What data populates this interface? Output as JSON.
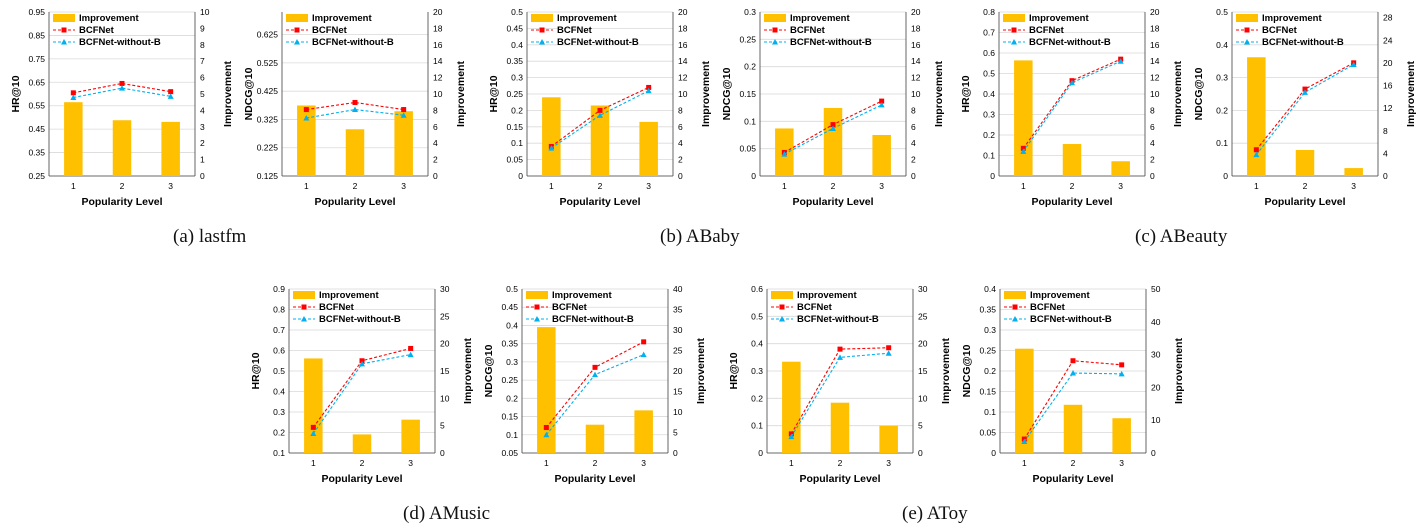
{
  "colors": {
    "bar": "#FFC000",
    "bcfnet": "#FF0000",
    "without_b": "#00B0F0",
    "axis": "#404040",
    "grid": "#D9D9D9",
    "text": "#000000"
  },
  "legend_labels": {
    "bar": "Improvement",
    "bcfnet": "BCFNet",
    "without_b": "BCFNet-without-B"
  },
  "xlabel": "Popularity Level",
  "y2label": "Improvement",
  "captions": [
    "(a)  lastfm",
    "(b)  ABaby",
    "(c)  ABeauty",
    "(d)  AMusic",
    "(e)  AToy"
  ],
  "chart_data": [
    {
      "type": "bar+line",
      "panel": "a",
      "ylabel": "HR@10",
      "categories": [
        "1",
        "2",
        "3"
      ],
      "yticks": [
        "0.25",
        "0.35",
        "0.45",
        "0.55",
        "0.65",
        "0.75",
        "0.85",
        "0.95"
      ],
      "ylim": [
        0.25,
        0.95
      ],
      "y2ticks": [
        "0",
        "1",
        "2",
        "3",
        "4",
        "5",
        "6",
        "7",
        "8",
        "9",
        "10"
      ],
      "y2lim": [
        0,
        10
      ],
      "series": [
        {
          "name": "Improvement",
          "kind": "bar",
          "axis": "right",
          "values": [
            4.5,
            3.4,
            3.3
          ]
        },
        {
          "name": "BCFNet",
          "kind": "line",
          "axis": "left",
          "values": [
            0.605,
            0.645,
            0.61
          ]
        },
        {
          "name": "BCFNet-without-B",
          "kind": "line",
          "axis": "left",
          "values": [
            0.585,
            0.625,
            0.59
          ]
        }
      ]
    },
    {
      "type": "bar+line",
      "panel": "a",
      "ylabel": "NDCG@10",
      "categories": [
        "1",
        "2",
        "3"
      ],
      "yticks": [
        "0.125",
        "0.225",
        "0.325",
        "0.425",
        "0.525",
        "0.625"
      ],
      "ylim": [
        0.125,
        0.705
      ],
      "y2ticks": [
        "0",
        "2",
        "4",
        "6",
        "8",
        "10",
        "12",
        "14",
        "16",
        "18",
        "20"
      ],
      "y2lim": [
        0,
        20
      ],
      "series": [
        {
          "name": "Improvement",
          "kind": "bar",
          "axis": "right",
          "values": [
            8.6,
            5.7,
            7.9
          ]
        },
        {
          "name": "BCFNet",
          "kind": "line",
          "axis": "left",
          "values": [
            0.36,
            0.385,
            0.36
          ]
        },
        {
          "name": "BCFNet-without-B",
          "kind": "line",
          "axis": "left",
          "values": [
            0.33,
            0.36,
            0.34
          ]
        }
      ]
    },
    {
      "type": "bar+line",
      "panel": "b",
      "ylabel": "HR@10",
      "categories": [
        "1",
        "2",
        "3"
      ],
      "yticks": [
        "0",
        "0.05",
        "0.1",
        "0.15",
        "0.2",
        "0.25",
        "0.3",
        "0.35",
        "0.4",
        "0.45",
        "0.5"
      ],
      "ylim": [
        0,
        0.5
      ],
      "y2ticks": [
        "0",
        "2",
        "4",
        "6",
        "8",
        "10",
        "12",
        "14",
        "16",
        "18",
        "20"
      ],
      "y2lim": [
        0,
        20
      ],
      "series": [
        {
          "name": "Improvement",
          "kind": "bar",
          "axis": "right",
          "values": [
            9.6,
            8.6,
            6.6
          ]
        },
        {
          "name": "BCFNet",
          "kind": "line",
          "axis": "left",
          "values": [
            0.09,
            0.2,
            0.27
          ]
        },
        {
          "name": "BCFNet-without-B",
          "kind": "line",
          "axis": "left",
          "values": [
            0.085,
            0.185,
            0.26
          ]
        }
      ]
    },
    {
      "type": "bar+line",
      "panel": "b",
      "ylabel": "NDCG@10",
      "categories": [
        "1",
        "2",
        "3"
      ],
      "yticks": [
        "0",
        "0.05",
        "0.1",
        "0.15",
        "0.2",
        "0.25",
        "0.3"
      ],
      "ylim": [
        0,
        0.3
      ],
      "y2ticks": [
        "0",
        "2",
        "4",
        "6",
        "8",
        "10",
        "12",
        "14",
        "16",
        "18",
        "20"
      ],
      "y2lim": [
        0,
        20
      ],
      "series": [
        {
          "name": "Improvement",
          "kind": "bar",
          "axis": "right",
          "values": [
            5.8,
            8.3,
            5.0
          ]
        },
        {
          "name": "BCFNet",
          "kind": "line",
          "axis": "left",
          "values": [
            0.043,
            0.094,
            0.137
          ]
        },
        {
          "name": "BCFNet-without-B",
          "kind": "line",
          "axis": "left",
          "values": [
            0.04,
            0.087,
            0.13
          ]
        }
      ]
    },
    {
      "type": "bar+line",
      "panel": "c",
      "ylabel": "HR@10",
      "categories": [
        "1",
        "2",
        "3"
      ],
      "yticks": [
        "0",
        "0.1",
        "0.2",
        "0.3",
        "0.4",
        "0.5",
        "0.6",
        "0.7",
        "0.8"
      ],
      "ylim": [
        0,
        0.8
      ],
      "y2ticks": [
        "0",
        "2",
        "4",
        "6",
        "8",
        "10",
        "12",
        "14",
        "16",
        "18",
        "20"
      ],
      "y2lim": [
        0,
        20
      ],
      "series": [
        {
          "name": "Improvement",
          "kind": "bar",
          "axis": "right",
          "values": [
            14.1,
            3.9,
            1.8
          ]
        },
        {
          "name": "BCFNet",
          "kind": "line",
          "axis": "left",
          "values": [
            0.135,
            0.465,
            0.57
          ]
        },
        {
          "name": "BCFNet-without-B",
          "kind": "line",
          "axis": "left",
          "values": [
            0.12,
            0.455,
            0.56
          ]
        }
      ]
    },
    {
      "type": "bar+line",
      "panel": "c",
      "ylabel": "NDCG@10",
      "categories": [
        "1",
        "2",
        "3"
      ],
      "yticks": [
        "0",
        "0.1",
        "0.2",
        "0.3",
        "0.4",
        "0.5"
      ],
      "ylim": [
        0,
        0.5
      ],
      "y2ticks": [
        "0",
        "4",
        "8",
        "12",
        "16",
        "20",
        "24",
        "28"
      ],
      "y2lim": [
        0,
        29
      ],
      "series": [
        {
          "name": "Improvement",
          "kind": "bar",
          "axis": "right",
          "values": [
            21,
            4.6,
            1.4
          ]
        },
        {
          "name": "BCFNet",
          "kind": "line",
          "axis": "left",
          "values": [
            0.08,
            0.265,
            0.345
          ]
        },
        {
          "name": "BCFNet-without-B",
          "kind": "line",
          "axis": "left",
          "values": [
            0.065,
            0.255,
            0.34
          ]
        }
      ]
    },
    {
      "type": "bar+line",
      "panel": "d",
      "ylabel": "HR@10",
      "categories": [
        "1",
        "2",
        "3"
      ],
      "yticks": [
        "0.1",
        "0.2",
        "0.3",
        "0.4",
        "0.5",
        "0.6",
        "0.7",
        "0.8",
        "0.9"
      ],
      "ylim": [
        0.1,
        0.9
      ],
      "y2ticks": [
        "0",
        "5",
        "10",
        "15",
        "20",
        "25",
        "30"
      ],
      "y2lim": [
        0,
        30
      ],
      "series": [
        {
          "name": "Improvement",
          "kind": "bar",
          "axis": "right",
          "values": [
            17.3,
            3.4,
            6.1
          ]
        },
        {
          "name": "BCFNet",
          "kind": "line",
          "axis": "left",
          "values": [
            0.225,
            0.55,
            0.61
          ]
        },
        {
          "name": "BCFNet-without-B",
          "kind": "line",
          "axis": "left",
          "values": [
            0.195,
            0.535,
            0.58
          ]
        }
      ]
    },
    {
      "type": "bar+line",
      "panel": "d",
      "ylabel": "NDCG@10",
      "categories": [
        "1",
        "2",
        "3"
      ],
      "yticks": [
        "0.05",
        "0.1",
        "0.15",
        "0.2",
        "0.25",
        "0.3",
        "0.35",
        "0.4",
        "0.45",
        "0.5"
      ],
      "ylim": [
        0.05,
        0.5
      ],
      "y2ticks": [
        "0",
        "5",
        "10",
        "15",
        "20",
        "25",
        "30",
        "35",
        "40"
      ],
      "y2lim": [
        0,
        40
      ],
      "series": [
        {
          "name": "Improvement",
          "kind": "bar",
          "axis": "right",
          "values": [
            30.7,
            6.9,
            10.4
          ]
        },
        {
          "name": "BCFNet",
          "kind": "line",
          "axis": "left",
          "values": [
            0.12,
            0.285,
            0.355
          ]
        },
        {
          "name": "BCFNet-without-B",
          "kind": "line",
          "axis": "left",
          "values": [
            0.1,
            0.265,
            0.32
          ]
        }
      ]
    },
    {
      "type": "bar+line",
      "panel": "e",
      "ylabel": "HR@10",
      "categories": [
        "1",
        "2",
        "3"
      ],
      "yticks": [
        "0",
        "0.1",
        "0.2",
        "0.3",
        "0.4",
        "0.5",
        "0.6"
      ],
      "ylim": [
        0,
        0.6
      ],
      "y2ticks": [
        "0",
        "5",
        "10",
        "15",
        "20",
        "25",
        "30"
      ],
      "y2lim": [
        0,
        30
      ],
      "series": [
        {
          "name": "Improvement",
          "kind": "bar",
          "axis": "right",
          "values": [
            16.7,
            9.2,
            5.0
          ]
        },
        {
          "name": "BCFNet",
          "kind": "line",
          "axis": "left",
          "values": [
            0.07,
            0.38,
            0.385
          ]
        },
        {
          "name": "BCFNet-without-B",
          "kind": "line",
          "axis": "left",
          "values": [
            0.06,
            0.35,
            0.365
          ]
        }
      ]
    },
    {
      "type": "bar+line",
      "panel": "e",
      "ylabel": "NDCG@10",
      "categories": [
        "1",
        "2",
        "3"
      ],
      "yticks": [
        "0",
        "0.05",
        "0.1",
        "0.15",
        "0.2",
        "0.25",
        "0.3",
        "0.35",
        "0.4"
      ],
      "ylim": [
        0,
        0.4
      ],
      "y2ticks": [
        "0",
        "10",
        "20",
        "30",
        "40",
        "50"
      ],
      "y2lim": [
        0,
        50
      ],
      "series": [
        {
          "name": "Improvement",
          "kind": "bar",
          "axis": "right",
          "values": [
            31.8,
            14.7,
            10.6
          ]
        },
        {
          "name": "BCFNet",
          "kind": "line",
          "axis": "left",
          "values": [
            0.034,
            0.225,
            0.215
          ]
        },
        {
          "name": "BCFNet-without-B",
          "kind": "line",
          "axis": "left",
          "values": [
            0.028,
            0.195,
            0.193
          ]
        }
      ]
    }
  ]
}
